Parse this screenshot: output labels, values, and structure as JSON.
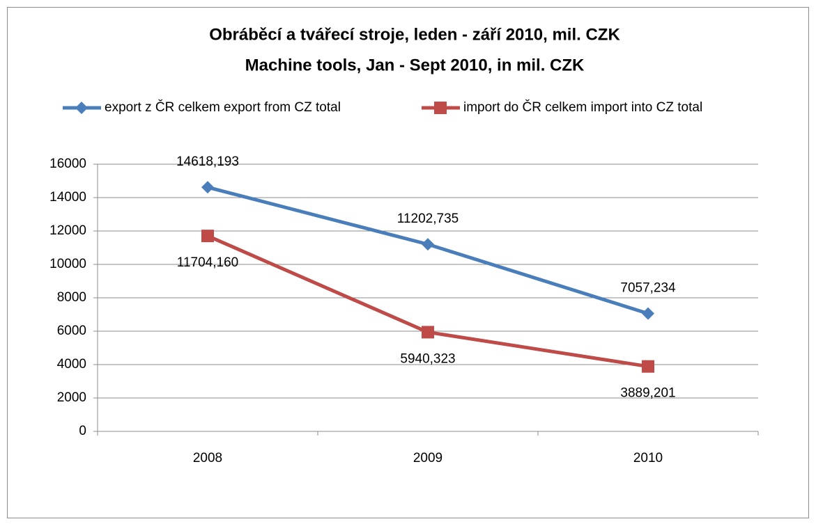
{
  "chart_data": {
    "type": "line",
    "title": "Obráběcí a tvářecí stroje, leden - září 2010, mil. CZK",
    "subtitle": "Machine tools, Jan - Sept 2010, in mil. CZK",
    "categories": [
      "2008",
      "2009",
      "2010"
    ],
    "series": [
      {
        "name": "export z ČR celkem export from CZ total",
        "color": "#4a7ebb",
        "marker": "diamond",
        "values": [
          14618.193,
          11202.735,
          7057.234
        ],
        "value_labels": [
          "14618,193",
          "11202,735",
          "7057,234"
        ]
      },
      {
        "name": "import do ČR celkem import into CZ total",
        "color": "#be4b48",
        "marker": "square",
        "values": [
          11704.16,
          5940.323,
          3889.201
        ],
        "value_labels": [
          "11704,160",
          "5940,323",
          "3889,201"
        ]
      }
    ],
    "ylim": [
      0,
      16000
    ],
    "yticks": [
      0,
      2000,
      4000,
      6000,
      8000,
      10000,
      12000,
      14000,
      16000
    ],
    "grid": true,
    "legend": "top"
  }
}
